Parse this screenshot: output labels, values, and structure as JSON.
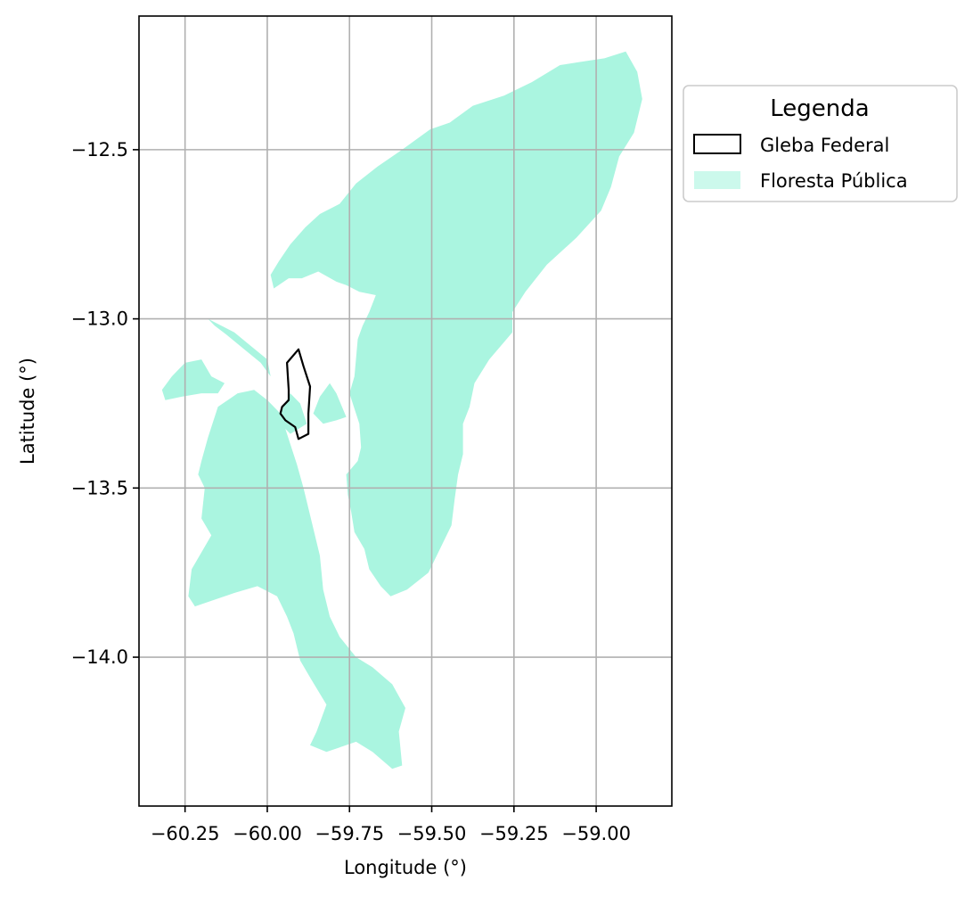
{
  "chart_data": {
    "type": "map",
    "xlabel": "Longitude (°)",
    "ylabel": "Latitude (°)",
    "xlim": [
      -60.39,
      -58.77
    ],
    "ylim": [
      -14.44,
      -12.105
    ],
    "xticks": [
      -60.25,
      -60.0,
      -59.75,
      -59.5,
      -59.25,
      -59.0
    ],
    "xtick_labels": [
      "−60.25",
      "−60.00",
      "−59.75",
      "−59.50",
      "−59.25",
      "−59.00"
    ],
    "yticks": [
      -12.5,
      -13.0,
      -13.5,
      -14.0
    ],
    "ytick_labels": [
      "−12.5",
      "−13.0",
      "−13.5",
      "−14.0"
    ],
    "grid": true,
    "legend": {
      "title": "Legenda",
      "placement": "outside right, top",
      "entries": [
        {
          "label": "Gleba Federal",
          "style": "outline",
          "color": "#000000"
        },
        {
          "label": "Floresta Pública",
          "style": "fill",
          "color": "#aaf5e0"
        }
      ]
    },
    "colors": {
      "forest": "#aaf5e0",
      "gleba_outline": "#000000",
      "grid": "#b0b0b0"
    },
    "layers": [
      {
        "name": "Floresta Pública",
        "type": "polygon",
        "coords": [
          [
            -59.76,
            -13.46
          ],
          [
            -59.725,
            -13.42
          ],
          [
            -59.715,
            -13.38
          ],
          [
            -59.72,
            -13.31
          ],
          [
            -59.75,
            -13.22
          ],
          [
            -59.735,
            -13.17
          ],
          [
            -59.725,
            -13.06
          ],
          [
            -59.71,
            -13.02
          ],
          [
            -59.69,
            -12.98
          ],
          [
            -59.67,
            -12.93
          ],
          [
            -59.72,
            -12.92
          ],
          [
            -59.76,
            -12.9
          ],
          [
            -59.79,
            -12.89
          ],
          [
            -59.845,
            -12.86
          ],
          [
            -59.895,
            -12.88
          ],
          [
            -59.935,
            -12.88
          ],
          [
            -59.98,
            -12.91
          ],
          [
            -59.99,
            -12.87
          ],
          [
            -59.965,
            -12.83
          ],
          [
            -59.93,
            -12.78
          ],
          [
            -59.885,
            -12.73
          ],
          [
            -59.84,
            -12.69
          ],
          [
            -59.78,
            -12.66
          ],
          [
            -59.73,
            -12.6
          ],
          [
            -59.665,
            -12.55
          ],
          [
            -59.59,
            -12.5
          ],
          [
            -59.505,
            -12.44
          ],
          [
            -59.445,
            -12.42
          ],
          [
            -59.375,
            -12.37
          ],
          [
            -59.28,
            -12.34
          ],
          [
            -59.195,
            -12.3
          ],
          [
            -59.11,
            -12.25
          ],
          [
            -59.045,
            -12.24
          ],
          [
            -58.975,
            -12.23
          ],
          [
            -58.91,
            -12.21
          ],
          [
            -58.875,
            -12.27
          ],
          [
            -58.86,
            -12.35
          ],
          [
            -58.885,
            -12.45
          ],
          [
            -58.93,
            -12.52
          ],
          [
            -58.955,
            -12.61
          ],
          [
            -58.985,
            -12.68
          ],
          [
            -59.06,
            -12.76
          ],
          [
            -59.15,
            -12.84
          ],
          [
            -59.215,
            -12.92
          ],
          [
            -59.255,
            -12.98
          ],
          [
            -59.255,
            -13.04
          ],
          [
            -59.325,
            -13.12
          ],
          [
            -59.37,
            -13.19
          ],
          [
            -59.385,
            -13.26
          ],
          [
            -59.405,
            -13.31
          ],
          [
            -59.405,
            -13.4
          ],
          [
            -59.42,
            -13.46
          ],
          [
            -59.43,
            -13.53
          ],
          [
            -59.44,
            -13.61
          ],
          [
            -59.475,
            -13.68
          ],
          [
            -59.51,
            -13.75
          ],
          [
            -59.575,
            -13.8
          ],
          [
            -59.625,
            -13.82
          ],
          [
            -59.655,
            -13.79
          ],
          [
            -59.69,
            -13.74
          ],
          [
            -59.705,
            -13.68
          ],
          [
            -59.735,
            -13.63
          ],
          [
            -59.745,
            -13.57
          ],
          [
            -59.755,
            -13.52
          ]
        ]
      },
      {
        "name": "Floresta Pública",
        "type": "polygon",
        "coords": [
          [
            -60.09,
            -13.22
          ],
          [
            -60.15,
            -13.26
          ],
          [
            -60.18,
            -13.35
          ],
          [
            -60.2,
            -13.42
          ],
          [
            -60.21,
            -13.46
          ],
          [
            -60.19,
            -13.5
          ],
          [
            -60.2,
            -13.59
          ],
          [
            -60.17,
            -13.64
          ],
          [
            -60.23,
            -13.74
          ],
          [
            -60.24,
            -13.82
          ],
          [
            -60.22,
            -13.85
          ],
          [
            -60.1,
            -13.81
          ],
          [
            -60.03,
            -13.79
          ],
          [
            -59.97,
            -13.82
          ],
          [
            -59.94,
            -13.88
          ],
          [
            -59.92,
            -13.93
          ],
          [
            -59.9,
            -14.01
          ],
          [
            -59.87,
            -14.06
          ],
          [
            -59.82,
            -14.14
          ],
          [
            -59.85,
            -14.22
          ],
          [
            -59.87,
            -14.26
          ],
          [
            -59.82,
            -14.28
          ],
          [
            -59.73,
            -14.25
          ],
          [
            -59.68,
            -14.28
          ],
          [
            -59.62,
            -14.33
          ],
          [
            -59.59,
            -14.32
          ],
          [
            -59.6,
            -14.22
          ],
          [
            -59.58,
            -14.15
          ],
          [
            -59.62,
            -14.08
          ],
          [
            -59.68,
            -14.03
          ],
          [
            -59.73,
            -14.0
          ],
          [
            -59.78,
            -13.94
          ],
          [
            -59.81,
            -13.88
          ],
          [
            -59.83,
            -13.8
          ],
          [
            -59.84,
            -13.7
          ],
          [
            -59.87,
            -13.58
          ],
          [
            -59.89,
            -13.5
          ],
          [
            -59.91,
            -13.43
          ],
          [
            -59.94,
            -13.34
          ],
          [
            -59.96,
            -13.28
          ],
          [
            -60.0,
            -13.24
          ],
          [
            -60.04,
            -13.21
          ]
        ]
      },
      {
        "name": "Floresta Pública",
        "type": "polygon",
        "coords": [
          [
            -60.32,
            -13.21
          ],
          [
            -60.29,
            -13.17
          ],
          [
            -60.25,
            -13.13
          ],
          [
            -60.2,
            -13.12
          ],
          [
            -60.17,
            -13.17
          ],
          [
            -60.13,
            -13.19
          ],
          [
            -60.15,
            -13.22
          ],
          [
            -60.2,
            -13.22
          ],
          [
            -60.26,
            -13.23
          ],
          [
            -60.31,
            -13.24
          ]
        ]
      },
      {
        "name": "Floresta Pública",
        "type": "polygon",
        "coords": [
          [
            -60.18,
            -13.0
          ],
          [
            -60.1,
            -13.04
          ],
          [
            -60.05,
            -13.08
          ],
          [
            -60.0,
            -13.12
          ],
          [
            -59.99,
            -13.17
          ],
          [
            -60.02,
            -13.13
          ],
          [
            -60.07,
            -13.09
          ],
          [
            -60.12,
            -13.05
          ],
          [
            -60.16,
            -13.02
          ]
        ]
      },
      {
        "name": "Floresta Pública",
        "type": "polygon",
        "coords": [
          [
            -59.97,
            -13.3
          ],
          [
            -59.93,
            -13.22
          ],
          [
            -59.9,
            -13.25
          ],
          [
            -59.88,
            -13.31
          ],
          [
            -59.93,
            -13.34
          ]
        ]
      },
      {
        "name": "Floresta Pública",
        "type": "polygon",
        "coords": [
          [
            -59.76,
            -13.29
          ],
          [
            -59.79,
            -13.22
          ],
          [
            -59.81,
            -13.19
          ],
          [
            -59.84,
            -13.23
          ],
          [
            -59.86,
            -13.28
          ],
          [
            -59.83,
            -13.31
          ],
          [
            -59.79,
            -13.3
          ]
        ]
      },
      {
        "name": "Gleba Federal",
        "type": "outline",
        "coords": [
          [
            -59.905,
            -13.09
          ],
          [
            -59.94,
            -13.13
          ],
          [
            -59.935,
            -13.21
          ],
          [
            -59.935,
            -13.24
          ],
          [
            -59.955,
            -13.26
          ],
          [
            -59.96,
            -13.28
          ],
          [
            -59.945,
            -13.3
          ],
          [
            -59.915,
            -13.32
          ],
          [
            -59.905,
            -13.355
          ],
          [
            -59.875,
            -13.34
          ],
          [
            -59.875,
            -13.28
          ],
          [
            -59.87,
            -13.2
          ],
          [
            -59.89,
            -13.14
          ]
        ]
      }
    ]
  }
}
